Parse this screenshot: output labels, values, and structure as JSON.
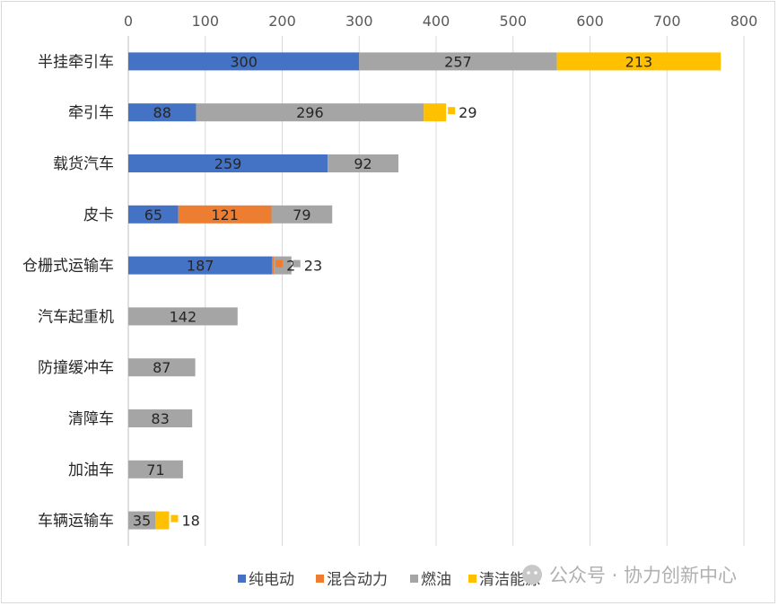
{
  "chart_data": {
    "type": "bar",
    "orientation": "horizontal",
    "stacked": true,
    "title": "",
    "xlabel": "",
    "ylabel": "",
    "xlim": [
      0,
      800
    ],
    "xticks": [
      0,
      100,
      200,
      300,
      400,
      500,
      600,
      700,
      800
    ],
    "x_axis_position": "top",
    "grid": true,
    "legend_position": "bottom",
    "categories": [
      "半挂牵引车",
      "牵引车",
      "载货汽车",
      "皮卡",
      "仓栅式运输车",
      "汽车起重机",
      "防撞缓冲车",
      "清障车",
      "加油车",
      "车辆运输车"
    ],
    "series": [
      {
        "name": "纯电动",
        "color": "#4472c4",
        "values": [
          300,
          88,
          259,
          65,
          187,
          0,
          0,
          0,
          0,
          0
        ]
      },
      {
        "name": "混合动力",
        "color": "#ed7d31",
        "values": [
          0,
          0,
          0,
          121,
          2,
          0,
          0,
          0,
          0,
          0
        ]
      },
      {
        "name": "燃油",
        "color": "#a5a5a5",
        "values": [
          257,
          296,
          92,
          79,
          23,
          142,
          87,
          83,
          71,
          35
        ]
      },
      {
        "name": "清洁能源",
        "color": "#ffc000",
        "values": [
          213,
          29,
          0,
          0,
          0,
          0,
          0,
          0,
          0,
          18
        ]
      }
    ]
  },
  "watermark": {
    "icon": "wechat-icon",
    "text": "公众号 · 协力创新中心"
  }
}
